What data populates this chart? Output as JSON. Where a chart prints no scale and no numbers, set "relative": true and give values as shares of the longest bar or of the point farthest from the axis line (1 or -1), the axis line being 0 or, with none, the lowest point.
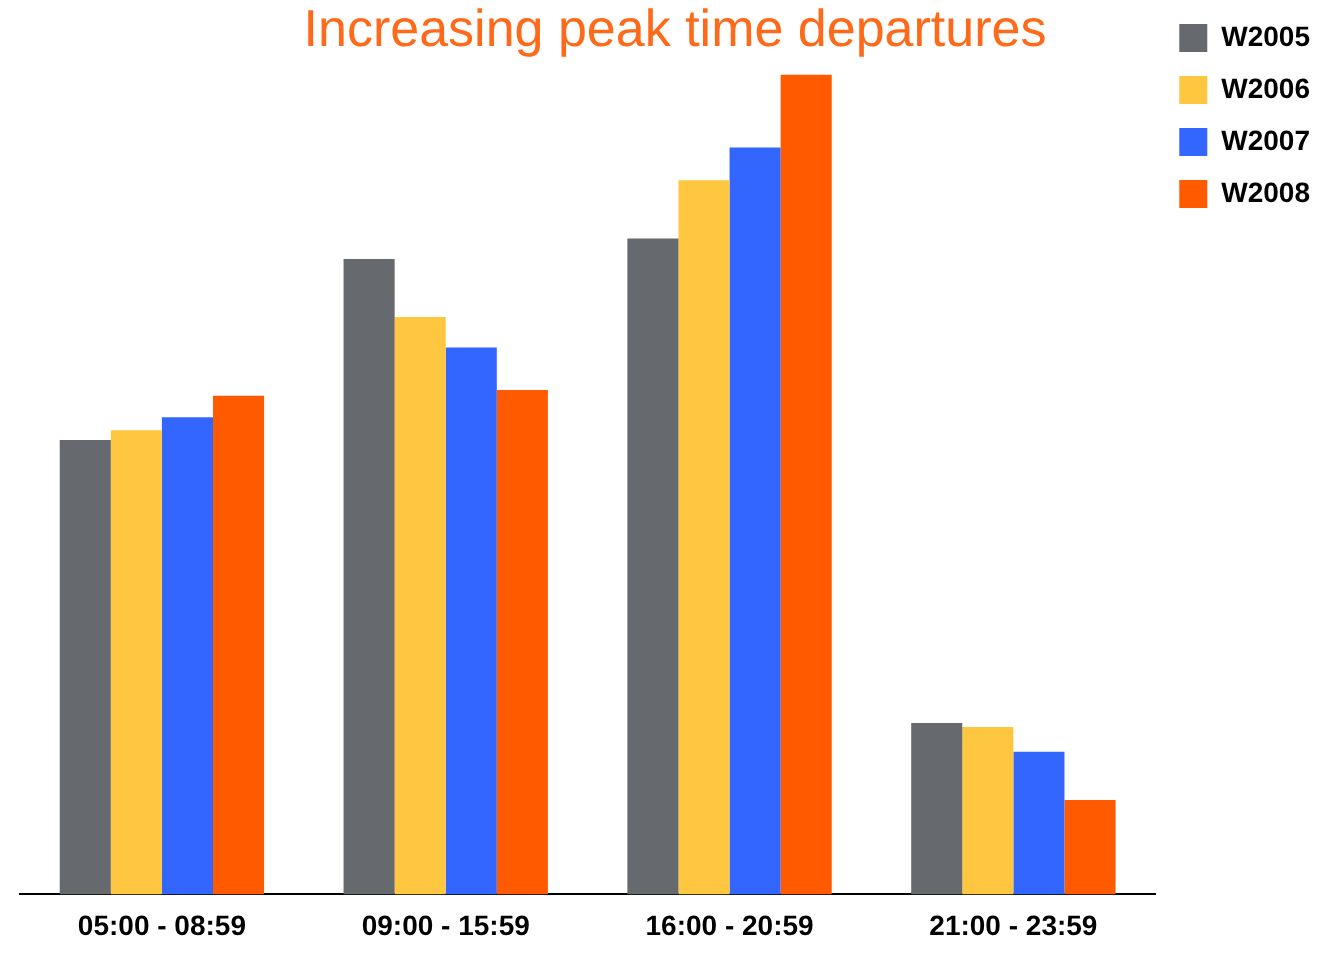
{
  "chart_data": {
    "type": "bar",
    "title": "Increasing peak time departures",
    "relative": true,
    "legend": "top right",
    "grid": false,
    "categories": [
      "05:00 - 08:59",
      "09:00 - 15:59",
      "16:00 - 20:59",
      "21:00 - 23:59"
    ],
    "series": [
      {
        "name": "W2005",
        "color": "#666a6e",
        "values": [
          0.554,
          0.775,
          0.8,
          0.209
        ]
      },
      {
        "name": "W2006",
        "color": "#ffc640",
        "values": [
          0.566,
          0.704,
          0.871,
          0.204
        ]
      },
      {
        "name": "W2007",
        "color": "#3366ff",
        "values": [
          0.582,
          0.667,
          0.911,
          0.174
        ]
      },
      {
        "name": "W2008",
        "color": "#ff5a00",
        "values": [
          0.608,
          0.615,
          1,
          0.115
        ]
      }
    ]
  }
}
